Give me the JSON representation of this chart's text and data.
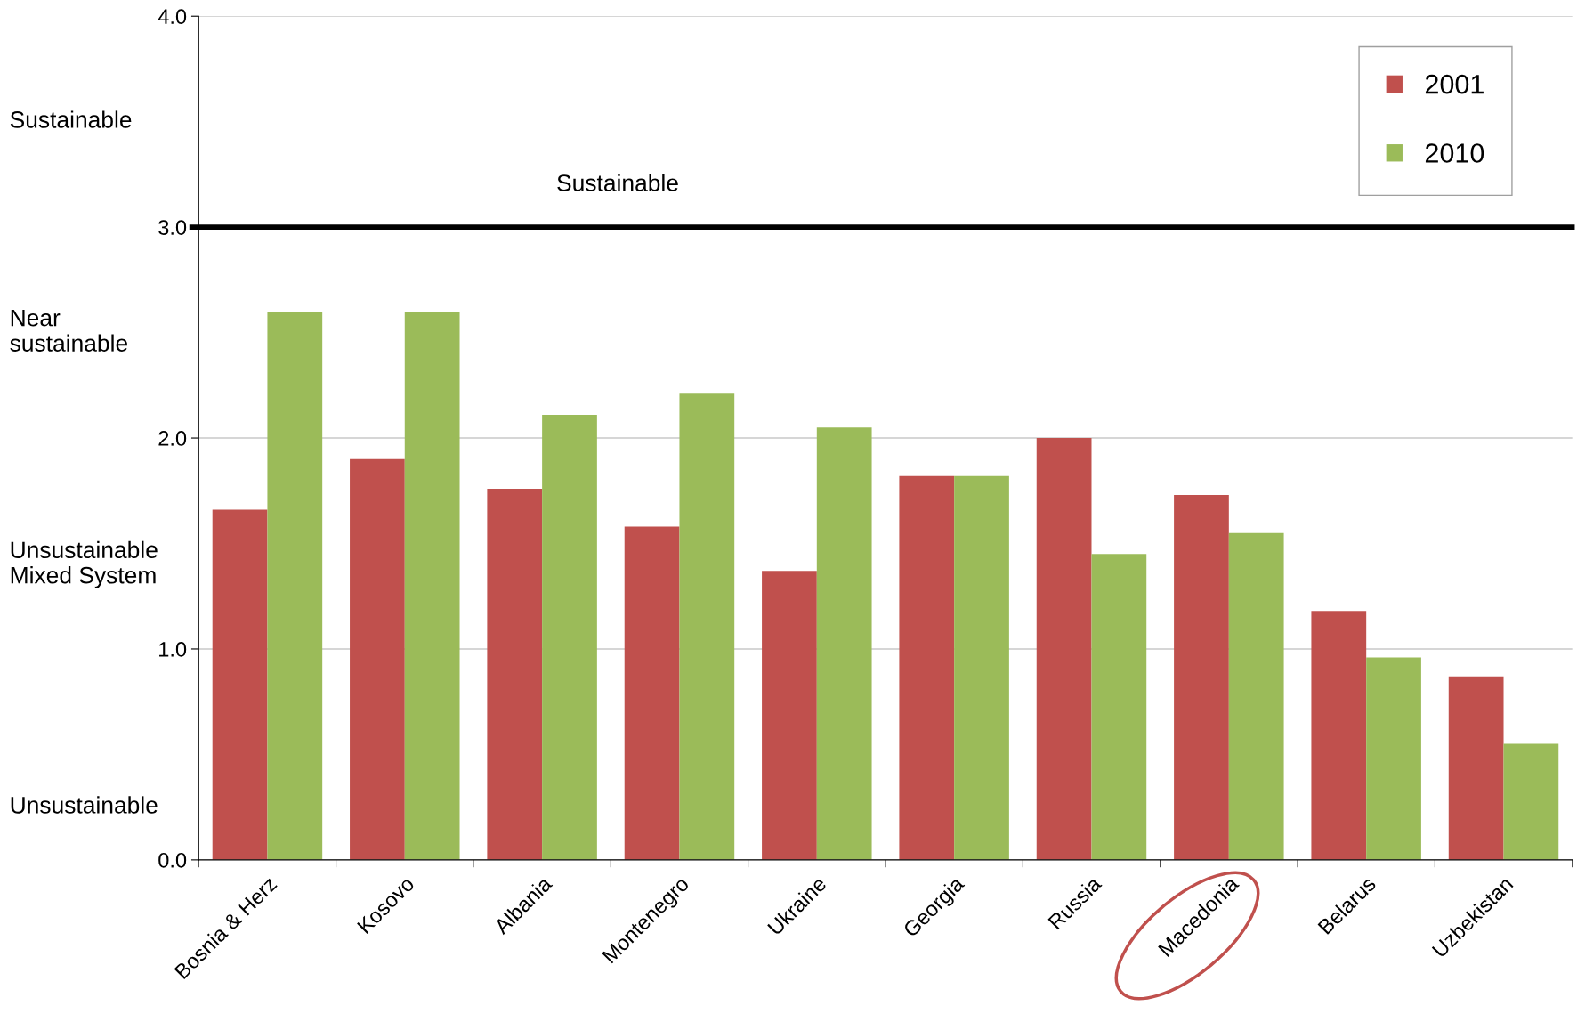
{
  "chart_data": {
    "type": "bar",
    "categories": [
      "Bosnia & Herz",
      "Kosovo",
      "Albania",
      "Montenegro",
      "Ukraine",
      "Georgia",
      "Russia",
      "Macedonia",
      "Belarus",
      "Uzbekistan"
    ],
    "series": [
      {
        "name": "2001",
        "color": "#c0504d",
        "values": [
          1.66,
          1.9,
          1.76,
          1.58,
          1.37,
          1.82,
          2.0,
          1.73,
          1.18,
          0.87
        ]
      },
      {
        "name": "2010",
        "color": "#9bbb59",
        "values": [
          2.6,
          2.6,
          2.11,
          2.21,
          2.05,
          1.82,
          1.45,
          1.55,
          0.96,
          0.55
        ]
      }
    ],
    "ylim": [
      0,
      4
    ],
    "yticks": [
      {
        "value": 0,
        "label": "0.0"
      },
      {
        "value": 1,
        "label": "1.0"
      },
      {
        "value": 2,
        "label": "2.0"
      },
      {
        "value": 3,
        "label": "3.0"
      },
      {
        "value": 4,
        "label": "4.0"
      }
    ],
    "ref_lines": [
      {
        "axis": "y",
        "value": 3,
        "label": "Sustainable",
        "color": "#000000"
      }
    ],
    "annotations": [
      "Sustainable",
      "Near\nsustainable",
      "Unsustainable\nMixed System",
      "Unsustainable"
    ],
    "grid": "y",
    "legend": "top right"
  }
}
